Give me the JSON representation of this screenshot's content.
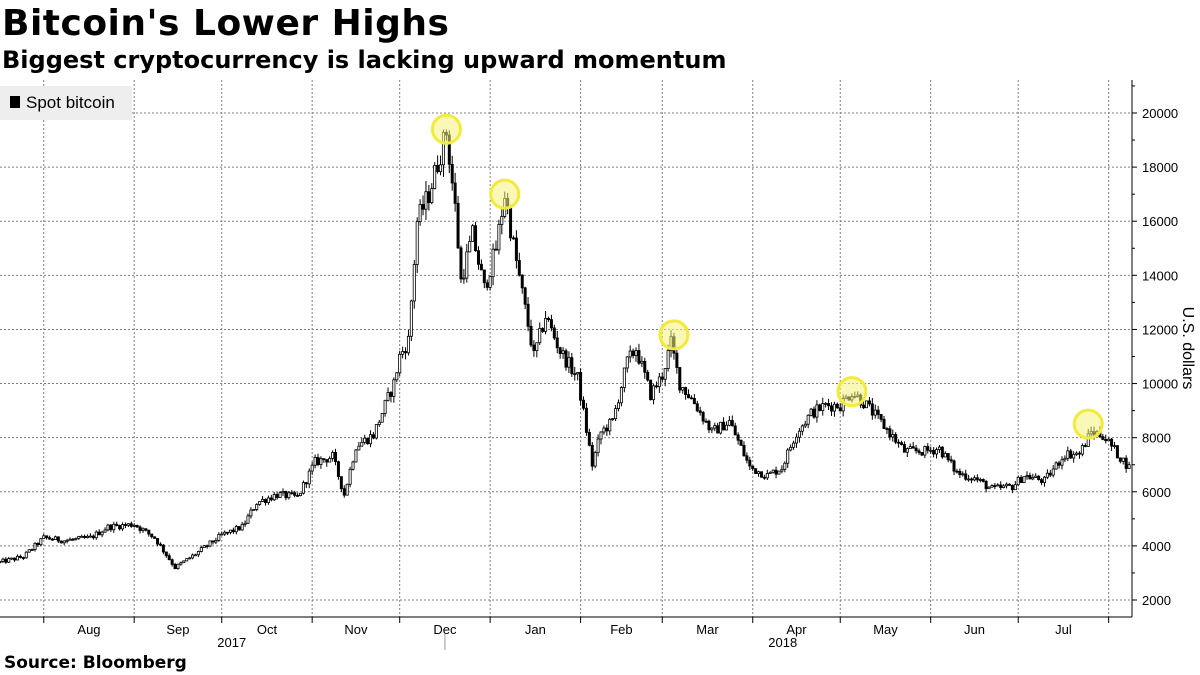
{
  "title": "Bitcoin's Lower Highs",
  "subtitle": "Biggest cryptocurrency is lacking upward momentum",
  "source": "Source: Bloomberg",
  "colors": {
    "candle": "#000000",
    "grid": "#7f7f7f",
    "highlight": "#f5f27a",
    "highlight_ring": "#f2ea3c",
    "legend_bg": "#eeeeee"
  },
  "chart_data": {
    "type": "candlestick",
    "ylabel": "U.S. dollars",
    "ylim": [
      1000,
      21000
    ],
    "y_ticks": [
      2000,
      4000,
      6000,
      8000,
      10000,
      12000,
      14000,
      16000,
      18000,
      20000
    ],
    "y_tick_labels": [
      "2000",
      "4000",
      "6000",
      "8000",
      "10000",
      "12000",
      "14000",
      "16000",
      "18000",
      "20000"
    ],
    "x_range": [
      "2017-07-17",
      "2018-08-09"
    ],
    "month_ticks": [
      "2017-08-01",
      "2017-09-01",
      "2017-10-01",
      "2017-11-01",
      "2017-12-01",
      "2018-01-01",
      "2018-02-01",
      "2018-03-01",
      "2018-04-01",
      "2018-05-01",
      "2018-06-01",
      "2018-07-01",
      "2018-08-01"
    ],
    "month_labels": [
      "Aug",
      "Sep",
      "Oct",
      "Nov",
      "Dec",
      "Jan",
      "Feb",
      "Mar",
      "Apr",
      "May",
      "Jun",
      "Jul"
    ],
    "year_labels": [
      "2017",
      "2018"
    ],
    "legend": "Spot bitcoin",
    "grid": true,
    "legend_position": "top-left",
    "series": [
      {
        "name": "Spot bitcoin",
        "price_path": [
          [
            "2017-07-17",
            3400
          ],
          [
            "2017-07-25",
            3600
          ],
          [
            "2017-08-01",
            4300
          ],
          [
            "2017-08-08",
            4200
          ],
          [
            "2017-08-17",
            4300
          ],
          [
            "2017-08-23",
            4700
          ],
          [
            "2017-09-01",
            4800
          ],
          [
            "2017-09-08",
            4300
          ],
          [
            "2017-09-15",
            3200
          ],
          [
            "2017-09-22",
            3700
          ],
          [
            "2017-10-01",
            4400
          ],
          [
            "2017-10-08",
            4700
          ],
          [
            "2017-10-13",
            5600
          ],
          [
            "2017-10-20",
            5900
          ],
          [
            "2017-10-27",
            5800
          ],
          [
            "2017-11-02",
            7100
          ],
          [
            "2017-11-08",
            7300
          ],
          [
            "2017-11-12",
            5900
          ],
          [
            "2017-11-16",
            7700
          ],
          [
            "2017-11-22",
            8100
          ],
          [
            "2017-11-26",
            9200
          ],
          [
            "2017-11-29",
            10000
          ],
          [
            "2017-12-01",
            11000
          ],
          [
            "2017-12-04",
            11600
          ],
          [
            "2017-12-07",
            16000
          ],
          [
            "2017-12-11",
            17000
          ],
          [
            "2017-12-17",
            19300
          ],
          [
            "2017-12-20",
            16500
          ],
          [
            "2017-12-22",
            13800
          ],
          [
            "2017-12-26",
            15500
          ],
          [
            "2017-12-30",
            13500
          ],
          [
            "2018-01-03",
            15000
          ],
          [
            "2018-01-06",
            17000
          ],
          [
            "2018-01-10",
            14500
          ],
          [
            "2018-01-16",
            11000
          ],
          [
            "2018-01-20",
            12500
          ],
          [
            "2018-01-25",
            11200
          ],
          [
            "2018-01-31",
            10200
          ],
          [
            "2018-02-05",
            7000
          ],
          [
            "2018-02-08",
            8200
          ],
          [
            "2018-02-12",
            8600
          ],
          [
            "2018-02-17",
            10800
          ],
          [
            "2018-02-20",
            11300
          ],
          [
            "2018-02-25",
            9600
          ],
          [
            "2018-03-01",
            10300
          ],
          [
            "2018-03-04",
            11500
          ],
          [
            "2018-03-07",
            10000
          ],
          [
            "2018-03-12",
            9300
          ],
          [
            "2018-03-18",
            8200
          ],
          [
            "2018-03-24",
            8600
          ],
          [
            "2018-03-31",
            6900
          ],
          [
            "2018-04-06",
            6600
          ],
          [
            "2018-04-11",
            6900
          ],
          [
            "2018-04-16",
            8200
          ],
          [
            "2018-04-21",
            8900
          ],
          [
            "2018-04-26",
            9200
          ],
          [
            "2018-05-01",
            9200
          ],
          [
            "2018-05-05",
            9700
          ],
          [
            "2018-05-10",
            9200
          ],
          [
            "2018-05-17",
            8300
          ],
          [
            "2018-05-23",
            7500
          ],
          [
            "2018-05-30",
            7500
          ],
          [
            "2018-06-04",
            7600
          ],
          [
            "2018-06-10",
            6700
          ],
          [
            "2018-06-16",
            6500
          ],
          [
            "2018-06-22",
            6100
          ],
          [
            "2018-06-29",
            6200
          ],
          [
            "2018-07-03",
            6600
          ],
          [
            "2018-07-10",
            6400
          ],
          [
            "2018-07-17",
            7400
          ],
          [
            "2018-07-22",
            7400
          ],
          [
            "2018-07-26",
            8200
          ],
          [
            "2018-07-30",
            8100
          ],
          [
            "2018-08-04",
            7400
          ],
          [
            "2018-08-08",
            6900
          ]
        ]
      }
    ],
    "highlighted_highs": [
      {
        "date": "2017-12-17",
        "value": 19400
      },
      {
        "date": "2018-01-06",
        "value": 17000
      },
      {
        "date": "2018-03-05",
        "value": 11800
      },
      {
        "date": "2018-05-05",
        "value": 9700
      },
      {
        "date": "2018-07-25",
        "value": 8500
      }
    ]
  }
}
